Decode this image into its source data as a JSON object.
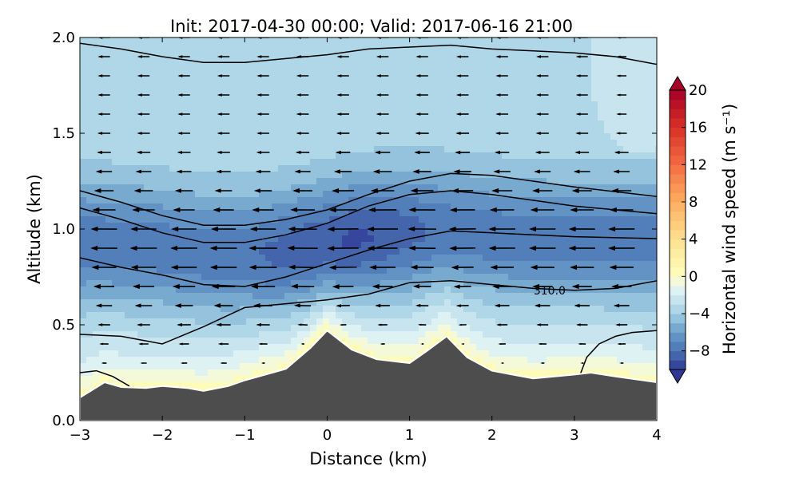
{
  "chart_data": {
    "type": "heatmap",
    "subtype": "filled contour with wind vectors and contour lines",
    "title": "Init: 2017-04-30 00:00; Valid: 2017-06-16 21:00",
    "xlabel": "Distance (km)",
    "ylabel": "Altitude (km)",
    "xlim": [
      -3,
      4
    ],
    "ylim": [
      0,
      2
    ],
    "xticks": [
      "−3",
      "−2",
      "−1",
      "0",
      "1",
      "2",
      "3",
      "4"
    ],
    "xtick_values": [
      -3,
      -2,
      -1,
      0,
      1,
      2,
      3,
      4
    ],
    "yticks": [
      "0.0",
      "0.5",
      "1.0",
      "1.5",
      "2.0"
    ],
    "ytick_values": [
      0,
      0.5,
      1.0,
      1.5,
      2.0
    ],
    "grid": false,
    "colorbar": {
      "label": "Horizontal wind speed (m s⁻¹)",
      "range": [
        -10,
        20
      ],
      "level_step": 1,
      "extend": "both",
      "ticks": [
        "−8",
        "−4",
        "0",
        "4",
        "8",
        "12",
        "16",
        "20"
      ],
      "tick_values": [
        -8,
        -4,
        0,
        4,
        8,
        12,
        16,
        20
      ],
      "color_stops": [
        [
          -10,
          "#313695"
        ],
        [
          -8,
          "#4a74b4"
        ],
        [
          -6,
          "#6a9dc9"
        ],
        [
          -4,
          "#a3d0e4"
        ],
        [
          -2,
          "#d4ecf3"
        ],
        [
          -1,
          "#e8f5f2"
        ],
        [
          0,
          "#ffffbf"
        ],
        [
          4,
          "#fee090"
        ],
        [
          8,
          "#fdae61"
        ],
        [
          12,
          "#f46d43"
        ],
        [
          16,
          "#d73027"
        ],
        [
          20,
          "#a50026"
        ]
      ]
    },
    "terrain": {
      "color": "#4d4d4d",
      "x": [
        -3,
        -2.85,
        -2.7,
        -2.5,
        -2.2,
        -2,
        -1.7,
        -1.5,
        -1.2,
        -1,
        -0.5,
        -0.2,
        0,
        0.3,
        0.6,
        1,
        1.2,
        1.45,
        1.7,
        2,
        2.5,
        3,
        3.2,
        3.5,
        4
      ],
      "z": [
        0.12,
        0.16,
        0.2,
        0.175,
        0.17,
        0.18,
        0.17,
        0.155,
        0.18,
        0.21,
        0.27,
        0.38,
        0.47,
        0.37,
        0.32,
        0.3,
        0.36,
        0.44,
        0.33,
        0.26,
        0.22,
        0.24,
        0.25,
        0.23,
        0.2
      ]
    },
    "contour_lines": [
      {
        "label": "310.0",
        "label_x": 2.7,
        "label_z": 0.68,
        "x": [
          -3,
          -2.5,
          -2,
          -1.5,
          -1,
          -0.5,
          0,
          0.5,
          1,
          1.5,
          2,
          2.5,
          3,
          3.5,
          4
        ],
        "z": [
          0.45,
          0.44,
          0.4,
          0.49,
          0.59,
          0.61,
          0.63,
          0.66,
          0.72,
          0.73,
          0.71,
          0.69,
          0.68,
          0.69,
          0.73
        ]
      },
      {
        "x": [
          -3,
          -2.5,
          -2,
          -1.5,
          -1,
          -0.5,
          0,
          0.5,
          1,
          1.5,
          2,
          3,
          4
        ],
        "z": [
          0.85,
          0.8,
          0.76,
          0.71,
          0.7,
          0.75,
          0.82,
          0.89,
          0.95,
          0.99,
          0.98,
          0.96,
          0.95
        ]
      },
      {
        "x": [
          -3,
          -2.5,
          -2,
          -1.5,
          -1,
          -0.5,
          0,
          0.5,
          1,
          1.5,
          2,
          3,
          4
        ],
        "z": [
          1.11,
          1.05,
          0.98,
          0.93,
          0.93,
          0.97,
          1.03,
          1.12,
          1.18,
          1.2,
          1.18,
          1.12,
          1.08
        ]
      },
      {
        "x": [
          -3,
          -2.5,
          -2,
          -1.5,
          -1,
          -0.5,
          0,
          0.5,
          1,
          1.5,
          2,
          3,
          4
        ],
        "z": [
          1.2,
          1.14,
          1.07,
          1.02,
          1.02,
          1.05,
          1.1,
          1.18,
          1.25,
          1.29,
          1.28,
          1.22,
          1.17
        ]
      },
      {
        "x": [
          -3,
          -2.5,
          -2,
          -1.5,
          -1,
          -0.5,
          0,
          0.5,
          1,
          1.5,
          2,
          2.5,
          3,
          3.5,
          4
        ],
        "z": [
          1.97,
          1.94,
          1.9,
          1.87,
          1.87,
          1.89,
          1.91,
          1.94,
          1.95,
          1.96,
          1.94,
          1.93,
          1.92,
          1.9,
          1.86
        ]
      },
      {
        "x": [
          -3,
          -2.8,
          -2.6,
          -2.4
        ],
        "z": [
          0.25,
          0.26,
          0.23,
          0.18
        ]
      },
      {
        "x": [
          3.07,
          3.15,
          3.3,
          3.5,
          3.7,
          4
        ],
        "z": [
          0.24,
          0.33,
          0.4,
          0.44,
          0.46,
          0.47
        ]
      }
    ],
    "wind_vectors": {
      "columns_x": [
        -2.7,
        -2.22,
        -1.73,
        -1.25,
        -0.77,
        -0.29,
        0.2,
        0.68,
        1.16,
        1.65,
        2.13,
        2.62,
        3.1,
        3.58
      ],
      "rows_z": [
        0.3,
        0.4,
        0.5,
        0.6,
        0.7,
        0.8,
        0.9,
        1.0,
        1.1,
        1.2,
        1.3,
        1.4,
        1.5,
        1.6,
        1.7,
        1.8,
        1.9,
        2.0
      ],
      "direction": "westward (negative x)",
      "color": "#000000"
    }
  }
}
